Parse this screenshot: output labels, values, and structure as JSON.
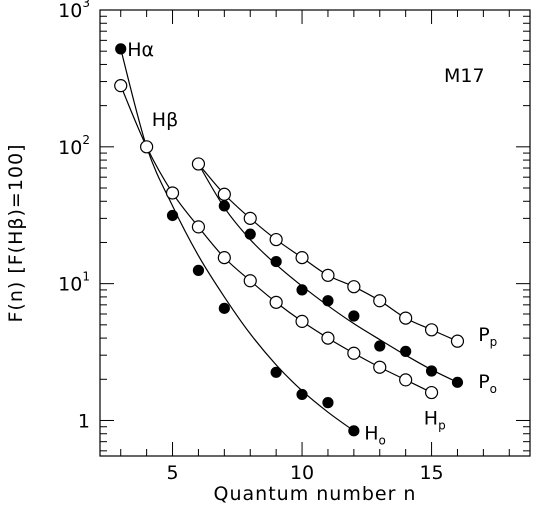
{
  "chart_data": {
    "type": "scatter",
    "annotation": "M17",
    "xlabel": "Quantum number n",
    "ylabel": "F(n)  [F(Hβ)=100]",
    "xlim": [
      2.2,
      18.8
    ],
    "ylim": [
      0.55,
      1000
    ],
    "yscale": "log",
    "x_ticks": [
      5,
      10,
      15
    ],
    "y_ticks": [
      {
        "value": 1,
        "base": "1",
        "exp": ""
      },
      {
        "value": 10,
        "base": "10",
        "exp": "1"
      },
      {
        "value": 100,
        "base": "10",
        "exp": "2"
      },
      {
        "value": 1000,
        "base": "10",
        "exp": "3"
      }
    ],
    "series": [
      {
        "name": "H",
        "sub": "o",
        "marker": "filled",
        "x": [
          3,
          4,
          5,
          6,
          7,
          9,
          10,
          11,
          12
        ],
        "y": [
          520,
          100,
          31.5,
          12.5,
          6.6,
          2.25,
          1.55,
          1.35,
          0.84
        ],
        "curve": [
          [
            3,
            520
          ],
          [
            4,
            100
          ],
          [
            5,
            37
          ],
          [
            6,
            16
          ],
          [
            7,
            8
          ],
          [
            8,
            4.3
          ],
          [
            9,
            2.55
          ],
          [
            10,
            1.65
          ],
          [
            11,
            1.15
          ],
          [
            12,
            0.84
          ]
        ],
        "label_at": [
          12.4,
          0.82
        ]
      },
      {
        "name": "H",
        "sub": "p",
        "marker": "open",
        "x": [
          3,
          4,
          5,
          6,
          7,
          8,
          9,
          10,
          11,
          12,
          13,
          14,
          15
        ],
        "y": [
          280,
          100,
          46,
          26,
          15.5,
          10.5,
          7.3,
          5.3,
          4.0,
          3.1,
          2.45,
          1.98,
          1.6
        ],
        "curve": [
          [
            3,
            280
          ],
          [
            4,
            100
          ],
          [
            5,
            46
          ],
          [
            6,
            26
          ],
          [
            7,
            15.5
          ],
          [
            8,
            10.5
          ],
          [
            9,
            7.3
          ],
          [
            10,
            5.3
          ],
          [
            11,
            4.0
          ],
          [
            12,
            3.1
          ],
          [
            13,
            2.45
          ],
          [
            14,
            1.98
          ],
          [
            15,
            1.6
          ]
        ],
        "label_at": [
          14.7,
          1.05
        ]
      },
      {
        "name": "P",
        "sub": "o",
        "marker": "filled",
        "x": [
          6,
          7,
          8,
          9,
          10,
          11,
          12,
          13,
          14,
          15,
          16
        ],
        "y": [
          75,
          37,
          23,
          14.5,
          9,
          7.5,
          5.8,
          3.5,
          3.2,
          2.3,
          1.9
        ],
        "curve": [
          [
            6,
            75
          ],
          [
            7,
            36
          ],
          [
            8,
            21
          ],
          [
            9,
            13.8
          ],
          [
            10,
            9.6
          ],
          [
            11,
            6.9
          ],
          [
            12,
            5.1
          ],
          [
            13,
            3.9
          ],
          [
            14,
            3.0
          ],
          [
            15,
            2.35
          ],
          [
            16,
            1.9
          ]
        ],
        "label_at": [
          16.8,
          1.95
        ]
      },
      {
        "name": "P",
        "sub": "p",
        "marker": "open",
        "x": [
          6,
          7,
          8,
          9,
          10,
          11,
          12,
          13,
          14,
          15,
          16
        ],
        "y": [
          75,
          45,
          30,
          21,
          15.5,
          11.5,
          9.5,
          7.5,
          5.6,
          4.6,
          3.8
        ],
        "curve": [
          [
            6,
            75
          ],
          [
            7,
            45
          ],
          [
            8,
            30
          ],
          [
            9,
            21
          ],
          [
            10,
            15.5
          ],
          [
            11,
            11.5
          ],
          [
            12,
            9.5
          ],
          [
            13,
            7.5
          ],
          [
            14,
            5.6
          ],
          [
            15,
            4.6
          ],
          [
            16,
            3.8
          ]
        ],
        "label_at": [
          16.8,
          4.3
        ]
      }
    ],
    "point_labels": [
      {
        "text": "Hα",
        "x": 3.25,
        "y": 520
      },
      {
        "text": "Hβ",
        "x": 4.2,
        "y": 160
      }
    ]
  }
}
